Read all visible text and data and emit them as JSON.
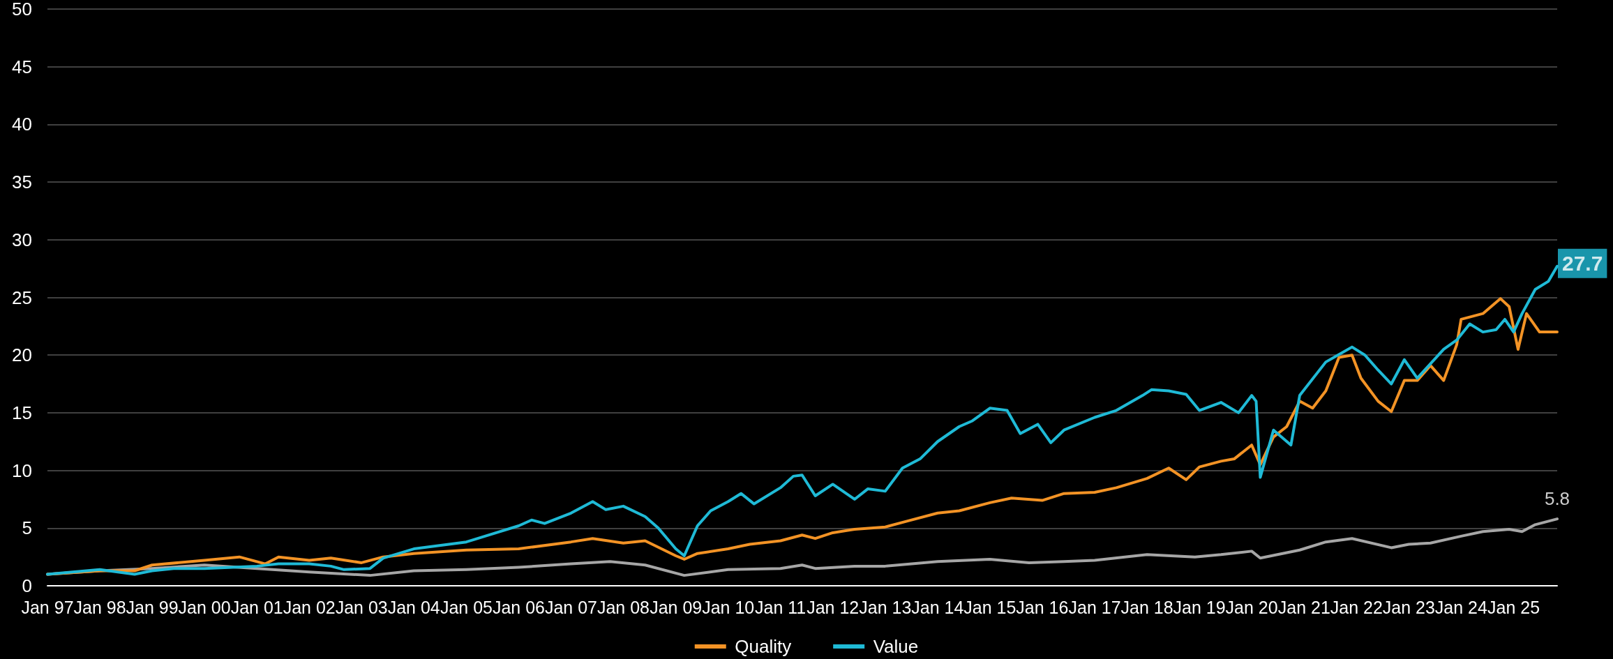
{
  "chart_data": {
    "type": "line",
    "legend": "bottom",
    "grid": "y",
    "marker": "none",
    "line_style": "solid",
    "ylim": [
      0,
      50
    ],
    "yticks": [
      0,
      5,
      10,
      15,
      20,
      25,
      30,
      35,
      40,
      45,
      50
    ],
    "xlim": [
      "1997-01",
      "2025-11"
    ],
    "xticks": [
      {
        "value": "1997-01",
        "label": "Jan 97"
      },
      {
        "value": "1998-01",
        "label": "Jan 98"
      },
      {
        "value": "1999-01",
        "label": "Jan 99"
      },
      {
        "value": "2000-01",
        "label": "Jan 00"
      },
      {
        "value": "2001-01",
        "label": "Jan 01"
      },
      {
        "value": "2002-01",
        "label": "Jan 02"
      },
      {
        "value": "2003-01",
        "label": "Jan 03"
      },
      {
        "value": "2004-01",
        "label": "Jan 04"
      },
      {
        "value": "2005-01",
        "label": "Jan 05"
      },
      {
        "value": "2006-01",
        "label": "Jan 06"
      },
      {
        "value": "2007-01",
        "label": "Jan 07"
      },
      {
        "value": "2008-01",
        "label": "Jan 08"
      },
      {
        "value": "2009-01",
        "label": "Jan 09"
      },
      {
        "value": "2010-01",
        "label": "Jan 10"
      },
      {
        "value": "2011-01",
        "label": "Jan 11"
      },
      {
        "value": "2012-01",
        "label": "Jan 12"
      },
      {
        "value": "2013-01",
        "label": "Jan 13"
      },
      {
        "value": "2014-01",
        "label": "Jan 14"
      },
      {
        "value": "2015-01",
        "label": "Jan 15"
      },
      {
        "value": "2016-01",
        "label": "Jan 16"
      },
      {
        "value": "2017-01",
        "label": "Jan 17"
      },
      {
        "value": "2018-01",
        "label": "Jan 18"
      },
      {
        "value": "2019-01",
        "label": "Jan 19"
      },
      {
        "value": "2020-01",
        "label": "Jan 20"
      },
      {
        "value": "2021-01",
        "label": "Jan 21"
      },
      {
        "value": "2022-01",
        "label": "Jan 22"
      },
      {
        "value": "2023-01",
        "label": "Jan 23"
      },
      {
        "value": "2024-01",
        "label": "Jan 24"
      },
      {
        "value": "2025-01",
        "label": "Jan 25"
      }
    ],
    "series": [
      {
        "color": "#a6a6a6",
        "x": [
          "1997-01",
          "1998-01",
          "1999-01",
          "2000-01",
          "2001-01",
          "2002-01",
          "2003-03",
          "2004-01",
          "2005-01",
          "2006-01",
          "2007-01",
          "2007-10",
          "2008-06",
          "2009-03",
          "2010-01",
          "2011-01",
          "2011-06",
          "2011-09",
          "2012-06",
          "2013-01",
          "2014-01",
          "2015-01",
          "2015-10",
          "2016-06",
          "2017-01",
          "2018-01",
          "2018-12",
          "2019-06",
          "2020-01",
          "2020-03",
          "2020-12",
          "2021-06",
          "2021-12",
          "2022-09",
          "2023-01",
          "2023-06",
          "2024-01",
          "2024-06",
          "2024-12",
          "2025-03",
          "2025-06",
          "2025-11"
        ],
        "values": [
          1.0,
          1.3,
          1.5,
          1.8,
          1.5,
          1.2,
          0.9,
          1.3,
          1.4,
          1.6,
          1.9,
          2.1,
          1.8,
          0.9,
          1.4,
          1.5,
          1.8,
          1.5,
          1.7,
          1.7,
          2.1,
          2.3,
          2.0,
          2.1,
          2.2,
          2.7,
          2.5,
          2.7,
          3.0,
          2.4,
          3.1,
          3.8,
          4.1,
          3.3,
          3.6,
          3.7,
          4.3,
          4.7,
          4.9,
          4.7,
          5.3,
          5.8
        ]
      },
      {
        "name": "Quality",
        "color": "#f39325",
        "x": [
          "1997-01",
          "1998-01",
          "1998-09",
          "1999-01",
          "2000-01",
          "2000-09",
          "2001-03",
          "2001-06",
          "2002-01",
          "2002-06",
          "2003-01",
          "2003-06",
          "2004-01",
          "2005-01",
          "2006-01",
          "2007-01",
          "2007-06",
          "2008-01",
          "2008-06",
          "2009-01",
          "2009-03",
          "2009-06",
          "2010-01",
          "2010-06",
          "2011-01",
          "2011-06",
          "2011-09",
          "2012-01",
          "2012-06",
          "2013-01",
          "2013-06",
          "2014-01",
          "2014-06",
          "2015-01",
          "2015-06",
          "2016-01",
          "2016-06",
          "2017-01",
          "2017-06",
          "2018-01",
          "2018-06",
          "2018-10",
          "2019-01",
          "2019-06",
          "2019-09",
          "2020-01",
          "2020-03",
          "2020-06",
          "2020-09",
          "2020-12",
          "2021-03",
          "2021-06",
          "2021-09",
          "2021-12",
          "2022-02",
          "2022-06",
          "2022-09",
          "2022-12",
          "2023-03",
          "2023-06",
          "2023-09",
          "2023-12",
          "2024-01",
          "2024-06",
          "2024-10",
          "2024-12",
          "2025-02",
          "2025-04",
          "2025-07",
          "2025-11"
        ],
        "values": [
          1.0,
          1.3,
          1.3,
          1.8,
          2.2,
          2.5,
          1.9,
          2.5,
          2.2,
          2.4,
          2.0,
          2.5,
          2.8,
          3.1,
          3.2,
          3.8,
          4.1,
          3.7,
          3.9,
          2.6,
          2.3,
          2.8,
          3.2,
          3.6,
          3.9,
          4.4,
          4.1,
          4.6,
          4.9,
          5.1,
          5.6,
          6.3,
          6.5,
          7.2,
          7.6,
          7.4,
          8.0,
          8.1,
          8.5,
          9.3,
          10.2,
          9.2,
          10.3,
          10.8,
          11.0,
          12.2,
          10.5,
          12.9,
          13.8,
          16.0,
          15.4,
          16.9,
          19.8,
          20.0,
          18.0,
          16.0,
          15.1,
          17.8,
          17.8,
          19.1,
          17.8,
          20.9,
          23.1,
          23.6,
          24.9,
          24.2,
          20.5,
          23.6,
          22.0,
          22.0
        ]
      },
      {
        "name": "Value",
        "color": "#1fbad6",
        "x": [
          "1997-01",
          "1998-01",
          "1998-09",
          "1999-01",
          "1999-06",
          "2000-01",
          "2001-01",
          "2001-06",
          "2002-01",
          "2002-06",
          "2002-09",
          "2003-03",
          "2003-06",
          "2004-01",
          "2005-01",
          "2006-01",
          "2006-04",
          "2006-07",
          "2007-01",
          "2007-06",
          "2007-09",
          "2008-01",
          "2008-06",
          "2008-09",
          "2009-01",
          "2009-03",
          "2009-06",
          "2009-09",
          "2010-01",
          "2010-04",
          "2010-07",
          "2011-01",
          "2011-04",
          "2011-06",
          "2011-09",
          "2012-01",
          "2012-06",
          "2012-09",
          "2013-01",
          "2013-05",
          "2013-09",
          "2014-01",
          "2014-06",
          "2014-09",
          "2015-01",
          "2015-05",
          "2015-08",
          "2015-12",
          "2016-03",
          "2016-06",
          "2017-01",
          "2017-06",
          "2017-12",
          "2018-02",
          "2018-06",
          "2018-10",
          "2019-01",
          "2019-06",
          "2019-10",
          "2020-01",
          "2020-02",
          "2020-03",
          "2020-06",
          "2020-10",
          "2020-12",
          "2021-06",
          "2021-12",
          "2022-03",
          "2022-06",
          "2022-09",
          "2022-12",
          "2023-03",
          "2023-09",
          "2023-12",
          "2024-03",
          "2024-06",
          "2024-09",
          "2024-11",
          "2025-01",
          "2025-03",
          "2025-06",
          "2025-09",
          "2025-11"
        ],
        "values": [
          1.0,
          1.4,
          1.0,
          1.3,
          1.5,
          1.5,
          1.7,
          1.9,
          1.9,
          1.7,
          1.4,
          1.5,
          2.4,
          3.2,
          3.8,
          5.2,
          5.7,
          5.4,
          6.3,
          7.3,
          6.6,
          6.9,
          6.0,
          5.0,
          3.2,
          2.6,
          5.2,
          6.5,
          7.3,
          8.0,
          7.1,
          8.5,
          9.5,
          9.6,
          7.8,
          8.8,
          7.5,
          8.4,
          8.2,
          10.2,
          11.0,
          12.5,
          13.8,
          14.3,
          15.4,
          15.2,
          13.2,
          14.0,
          12.4,
          13.5,
          14.6,
          15.2,
          16.5,
          17.0,
          16.9,
          16.6,
          15.2,
          15.9,
          15.0,
          16.5,
          16.0,
          9.4,
          13.5,
          12.2,
          16.5,
          19.4,
          20.7,
          20.0,
          18.7,
          17.5,
          19.6,
          18.0,
          20.5,
          21.3,
          22.7,
          22.0,
          22.2,
          23.1,
          22.0,
          23.6,
          25.7,
          26.4,
          27.7
        ]
      }
    ],
    "annotations": [
      {
        "text": "27.7",
        "x": "2025-11",
        "y": 27.7
      },
      {
        "text": "5.8",
        "x": "2025-11",
        "y": 5.8
      }
    ]
  }
}
